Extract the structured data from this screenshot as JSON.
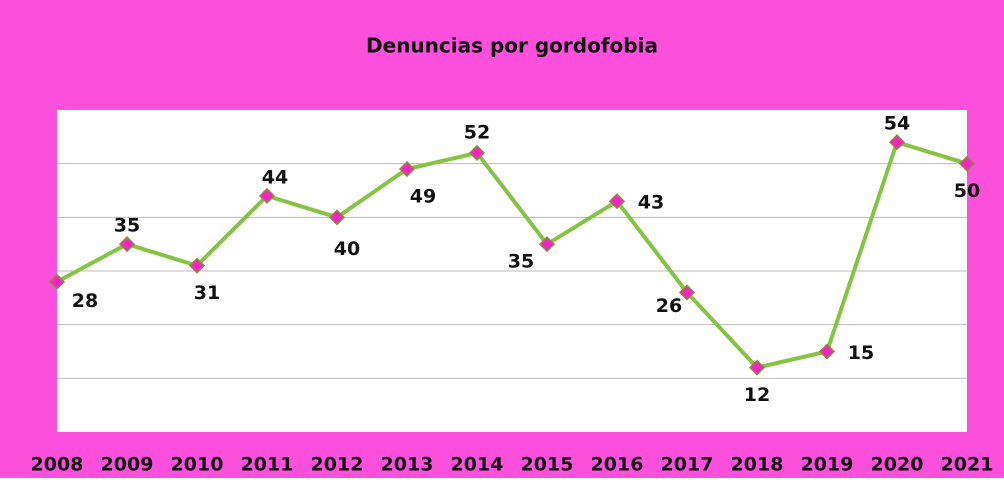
{
  "chart_data": {
    "type": "line",
    "title": "Denuncias por gordofobia",
    "categories": [
      "2008",
      "2009",
      "2010",
      "2011",
      "2012",
      "2013",
      "2014",
      "2015",
      "2016",
      "2017",
      "2018",
      "2019",
      "2020",
      "2021"
    ],
    "series": [
      {
        "name": "Denuncias",
        "color": "#84c441",
        "marker_color": "#ff1fc8",
        "values": [
          28,
          35,
          31,
          44,
          40,
          49,
          52,
          35,
          43,
          26,
          12,
          15,
          54,
          50
        ]
      }
    ],
    "ylim": [
      0,
      60
    ],
    "yticks": [
      10,
      20,
      30,
      40,
      50
    ],
    "grid": true,
    "background": "#fc4fdc"
  }
}
